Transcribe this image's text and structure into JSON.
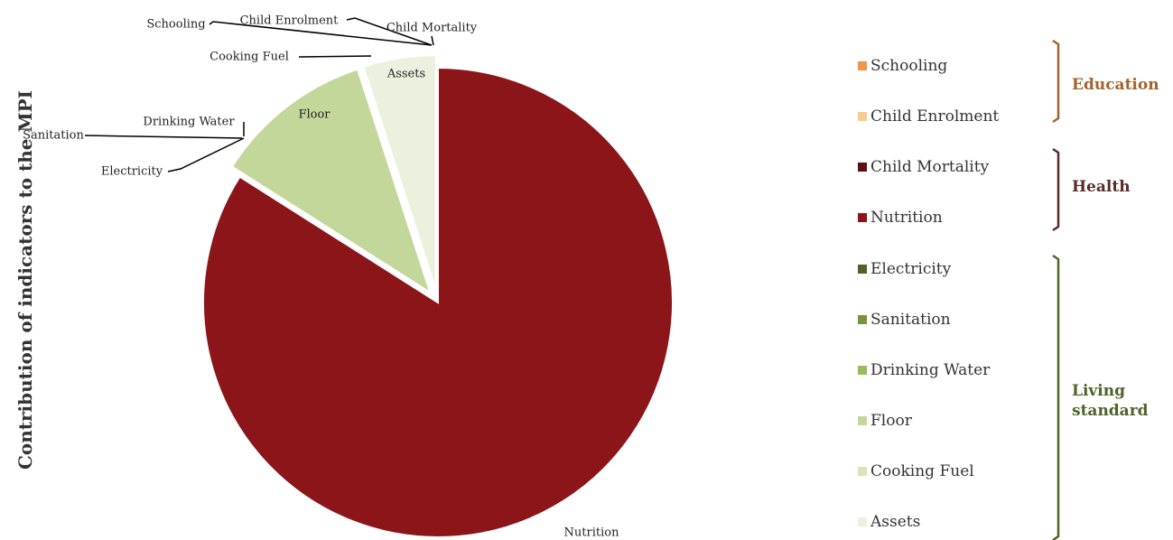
{
  "ylabel": "Contribution of indicators to the MPI",
  "chart_data": {
    "type": "pie",
    "title": "",
    "slices": [
      {
        "label": "Nutrition",
        "value": 84.0,
        "color": "#8B1518"
      },
      {
        "label": "Child Mortality",
        "value": 0.0,
        "color": "#5C0F14"
      },
      {
        "label": "Schooling",
        "value": 0.0,
        "color": "#F0954A"
      },
      {
        "label": "Child Enrolment",
        "value": 0.0,
        "color": "#FAC990"
      },
      {
        "label": "Electricity",
        "value": 0.0,
        "color": "#4F6228"
      },
      {
        "label": "Sanitation",
        "value": 0.0,
        "color": "#77933C"
      },
      {
        "label": "Drinking Water",
        "value": 0.0,
        "color": "#9BBB59"
      },
      {
        "label": "Floor",
        "value": 11.0,
        "color": "#C4D79B"
      },
      {
        "label": "Cooking Fuel",
        "value": 0.0,
        "color": "#D8E4BC"
      },
      {
        "label": "Assets",
        "value": 5.0,
        "color": "#EBF1DE"
      }
    ]
  },
  "legend": {
    "items": [
      {
        "label": "Schooling",
        "color": "#F0954A"
      },
      {
        "label": "Child Enrolment",
        "color": "#FAC990"
      },
      {
        "label": "Child Mortality",
        "color": "#5C0F14"
      },
      {
        "label": "Nutrition",
        "color": "#8B1518"
      },
      {
        "label": "Electricity",
        "color": "#4F6228"
      },
      {
        "label": "Sanitation",
        "color": "#77933C"
      },
      {
        "label": "Drinking Water",
        "color": "#9BBB59"
      },
      {
        "label": "Floor",
        "color": "#C4D79B"
      },
      {
        "label": "Cooking Fuel",
        "color": "#D8E4BC"
      },
      {
        "label": "Assets",
        "color": "#EBF1DE"
      }
    ],
    "groups": [
      {
        "label": "Education",
        "color": "#A5622A"
      },
      {
        "label": "Health",
        "color": "#5C2A2A"
      },
      {
        "label": "Living standard",
        "color": "#4F6228"
      }
    ]
  }
}
